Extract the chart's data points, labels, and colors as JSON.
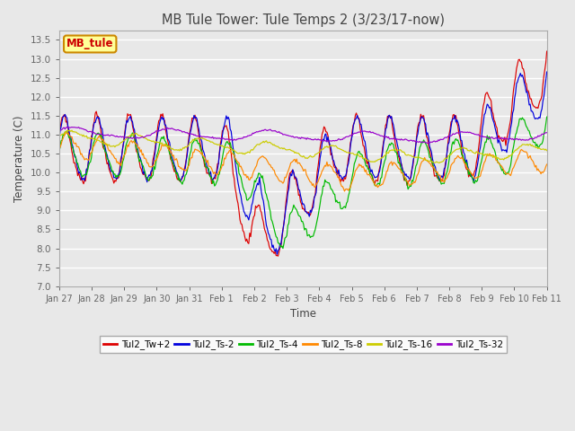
{
  "title": "MB Tule Tower: Tule Temps 2 (3/23/17-now)",
  "xlabel": "Time",
  "ylabel": "Temperature (C)",
  "ylim": [
    7.0,
    13.75
  ],
  "yticks": [
    7.0,
    7.5,
    8.0,
    8.5,
    9.0,
    9.5,
    10.0,
    10.5,
    11.0,
    11.5,
    12.0,
    12.5,
    13.0,
    13.5
  ],
  "legend_label": "MB_tule",
  "series_labels": [
    "Tul2_Tw+2",
    "Tul2_Ts-2",
    "Tul2_Ts-4",
    "Tul2_Ts-8",
    "Tul2_Ts-16",
    "Tul2_Ts-32"
  ],
  "series_colors": [
    "#dd0000",
    "#0000dd",
    "#00bb00",
    "#ff8800",
    "#cccc00",
    "#9900cc"
  ],
  "x_start": 27.0,
  "x_end": 42.0,
  "xtick_positions": [
    27,
    28,
    29,
    30,
    31,
    32,
    33,
    34,
    35,
    36,
    37,
    38,
    39,
    40,
    41,
    42
  ],
  "xtick_labels": [
    "Jan 27",
    "Jan 28",
    "Jan 29",
    "Jan 30",
    "Jan 31",
    "Feb 1",
    "Feb 2",
    "Feb 3",
    "Feb 4",
    "Feb 5",
    "Feb 6",
    "Feb 7",
    "Feb 8",
    "Feb 9",
    "Feb 10",
    "Feb 11"
  ],
  "background_color": "#e8e8e8",
  "plot_bg_color": "#e8e8e8",
  "grid_color": "#ffffff",
  "annotation_box_color": "#ffff99",
  "annotation_box_edge": "#cc8800",
  "title_color": "#444444",
  "label_color": "#444444"
}
